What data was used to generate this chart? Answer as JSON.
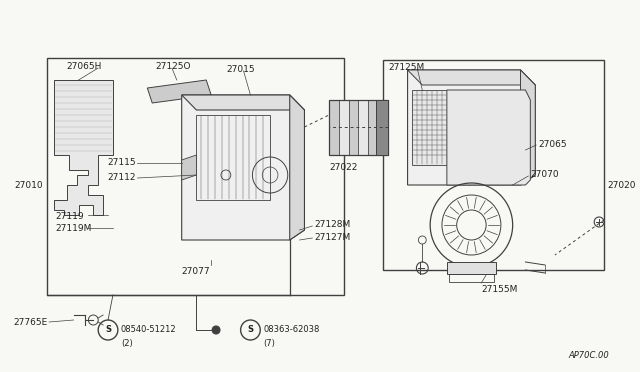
{
  "bg_color": "#ffffff",
  "line_color": "#404040",
  "text_color": "#222222",
  "diagram_label": "AP70C.00",
  "left_label": "27010",
  "right_label": "27020",
  "outer_bg": "#f8f8f5"
}
